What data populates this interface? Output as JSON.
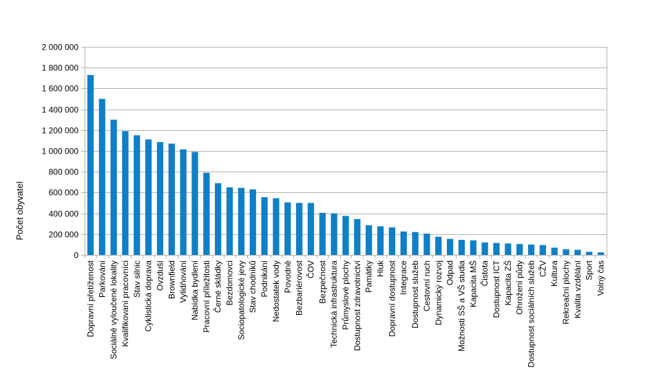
{
  "chart_data": {
    "type": "bar",
    "ylabel": "Počet obyvatel",
    "ylim": [
      0,
      2000000
    ],
    "y_ticks": [
      0,
      200000,
      400000,
      600000,
      800000,
      1000000,
      1200000,
      1400000,
      1600000,
      1800000,
      2000000
    ],
    "y_tick_labels": [
      "0",
      "200 000",
      "400 000",
      "600 000",
      "800 000",
      "1 000 000",
      "1 200 000",
      "1 400 000",
      "1 600 000",
      "1 800 000",
      "2 000 000"
    ],
    "grid": true,
    "legend": "none",
    "bar_color": "#0f7fc6",
    "categories": [
      "Dopravní přetíženost",
      "Parkování",
      "Sociálně vyloučené lokality",
      "Kvalifikovaní pracovníci",
      "Stav silnic",
      "Cyklistická doprava",
      "Ovzduší",
      "Brownfield",
      "Vylidňování",
      "Nabídka bydlení",
      "Pracovní příležitosti",
      "Černé skládky",
      "Bezdomovci",
      "Sociopatologické jevy",
      "Stav chodníků",
      "Podnikání",
      "Nedostatek vody",
      "Povodně",
      "Bezbariérovost",
      "ČOV",
      "Bezpečnost",
      "Technická infrastruktura",
      "Průmyslové plochy",
      "Dostupnost zdravotnictví",
      "Památky",
      "Hluk",
      "Dopravní dostupnost",
      "Integrace",
      "Dostupnost služeb",
      "Cestovní ruch",
      "Dynamický rozvoj",
      "Odpad",
      "Možnosti SŠ a VŠ studia",
      "Kapacita MŠ",
      "Čistota",
      "Dostupnost ICT",
      "Kapacita ZŠ",
      "Ohrožení půdy",
      "Dostupnost sociálních služeb",
      "CŽV",
      "Kultura",
      "Rekreační plochy",
      "Kvalita vzdělání",
      "Sport",
      "Volný čas"
    ],
    "values": [
      1730000,
      1500000,
      1300000,
      1190000,
      1150000,
      1110000,
      1085000,
      1070000,
      1015000,
      990000,
      790000,
      690000,
      650000,
      645000,
      630000,
      555000,
      545000,
      505000,
      500000,
      500000,
      405000,
      400000,
      375000,
      345000,
      285000,
      275000,
      265000,
      225000,
      220000,
      205000,
      175000,
      155000,
      145000,
      140000,
      120000,
      115000,
      110000,
      105000,
      100000,
      95000,
      70000,
      55000,
      50000,
      30000,
      25000
    ]
  }
}
